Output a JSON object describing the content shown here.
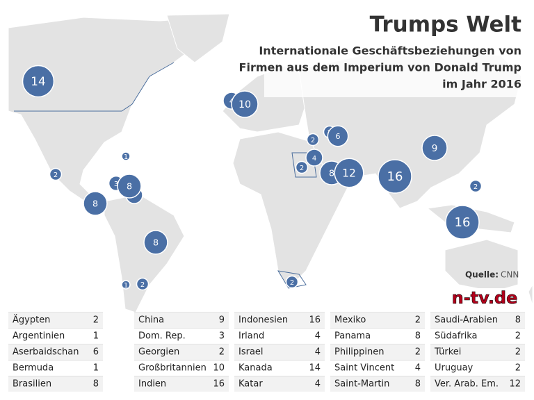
{
  "header": {
    "title": "Trumps Welt",
    "subtitle": [
      "Internationale Geschäftsbeziehungen von",
      "Firmen aus dem Imperium von Donald Trump",
      "im Jahr 2016"
    ]
  },
  "source_label": "Quelle:",
  "source": "CNN",
  "logo": "n-tv.de",
  "table": {
    "columns": [
      {
        "rows": [
          {
            "country": "Ägypten",
            "value": 2
          },
          {
            "country": "Argentinien",
            "value": 1
          },
          {
            "country": "Aserbaidschan",
            "value": 6
          },
          {
            "country": "Bermuda",
            "value": 1
          },
          {
            "country": "Brasilien",
            "value": 8
          }
        ]
      },
      {
        "rows": [
          {
            "country": "China",
            "value": 9
          },
          {
            "country": "Dom. Rep.",
            "value": 3
          },
          {
            "country": "Georgien",
            "value": 2
          },
          {
            "country": "Großbritannien",
            "value": 10
          },
          {
            "country": "Indien",
            "value": 16
          }
        ]
      },
      {
        "rows": [
          {
            "country": "Indonesien",
            "value": 16
          },
          {
            "country": "Irland",
            "value": 4
          },
          {
            "country": "Israel",
            "value": 4
          },
          {
            "country": "Kanada",
            "value": 14
          },
          {
            "country": "Katar",
            "value": 4
          }
        ]
      },
      {
        "rows": [
          {
            "country": "Mexiko",
            "value": 2
          },
          {
            "country": "Panama",
            "value": 8
          },
          {
            "country": "Philippinen",
            "value": 2
          },
          {
            "country": "Saint Vincent",
            "value": 4
          },
          {
            "country": "Saint-Martin",
            "value": 8
          }
        ]
      },
      {
        "rows": [
          {
            "country": "Saudi-Arabien",
            "value": 8
          },
          {
            "country": "Südafrika",
            "value": 2
          },
          {
            "country": "Türkei",
            "value": 2
          },
          {
            "country": "Uruguay",
            "value": 2
          },
          {
            "country": "Ver. Arab. Em.",
            "value": 12
          }
        ]
      }
    ]
  }
}
